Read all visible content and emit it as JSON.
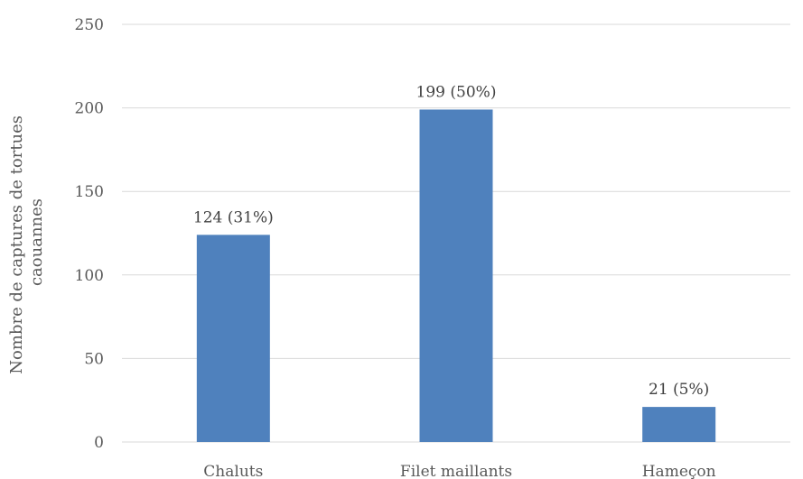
{
  "chart_data": {
    "type": "bar",
    "categories": [
      "Chaluts",
      "Filet maillants",
      "Hameçon"
    ],
    "values": [
      124,
      199,
      21
    ],
    "data_labels": [
      "124 (31%)",
      "199 (50%)",
      "21 (5%)"
    ],
    "title": "",
    "xlabel": "",
    "ylabel_lines": [
      "Nombre de captures de tortues",
      "caouannes"
    ],
    "ylim": [
      0,
      250
    ],
    "yticks": [
      0,
      50,
      100,
      150,
      200,
      250
    ],
    "grid": true,
    "legend": "none",
    "bar_color": "#4f81bd"
  }
}
